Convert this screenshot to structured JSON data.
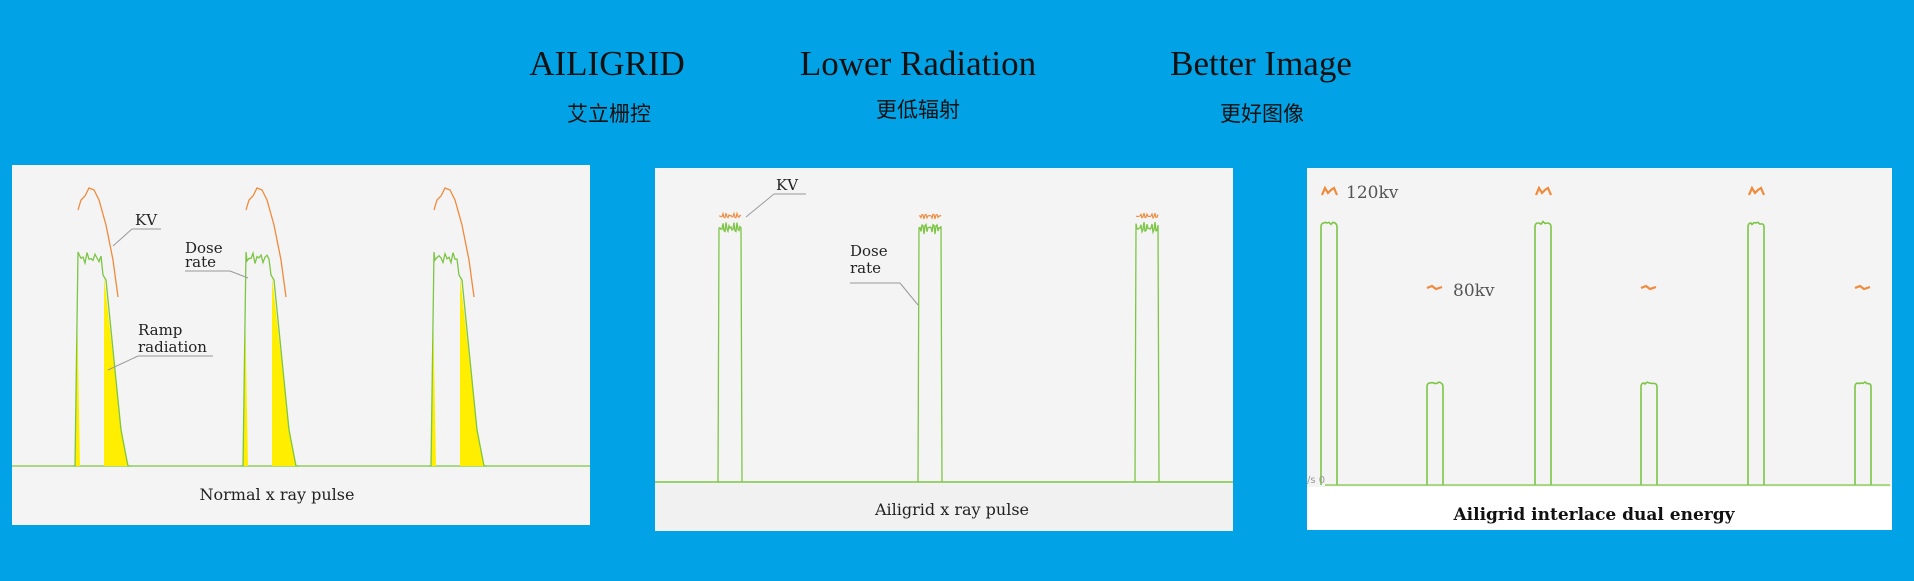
{
  "header": {
    "items": [
      {
        "title": "AILIGRID",
        "subtitle": "艾立栅控"
      },
      {
        "title": "Lower Radiation",
        "subtitle": "更低辐射"
      },
      {
        "title": "Better Image",
        "subtitle": "更好图像"
      }
    ]
  },
  "colors": {
    "background": "#02a3e6",
    "panel": "#f4f4f4",
    "dose_rate": "#7cc545",
    "kv": "#f08a3c",
    "ramp_radiation": "#ffee00"
  },
  "chart_data": [
    {
      "type": "line",
      "caption": "Normal x ray pulse",
      "pulses": 3,
      "annotations": {
        "kv": "KV",
        "dose_line1": "Dose",
        "dose_line2": "rate",
        "ramp_line1": "Ramp",
        "ramp_line2": "radiation"
      }
    },
    {
      "type": "line",
      "caption": "Ailigrid x ray pulse",
      "pulses": 3,
      "annotations": {
        "kv": "KV",
        "dose_line1": "Dose",
        "dose_line2": "rate"
      }
    },
    {
      "type": "line",
      "caption": "Ailigrid interlace dual energy",
      "pulses": 6,
      "levels": {
        "high": "120kv",
        "low": "80kv"
      },
      "axis_label": "/s 0"
    }
  ]
}
